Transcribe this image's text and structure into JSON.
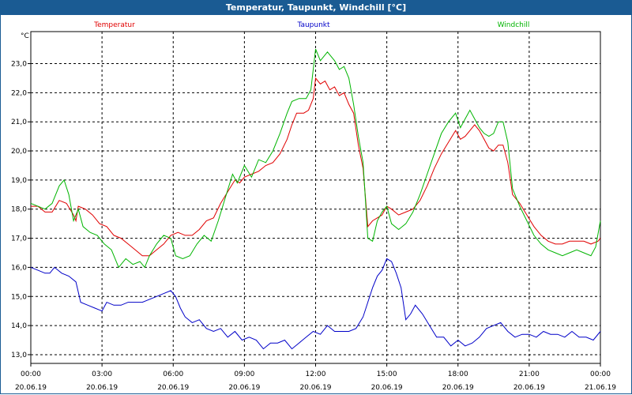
{
  "window": {
    "title": "Temperatur, Taupunkt, Windchill [°C]"
  },
  "chart_data": {
    "type": "line",
    "title": "Temperatur, Taupunkt, Windchill [°C]",
    "ylabel": "°C",
    "ylim": [
      12.7,
      24.1
    ],
    "xlim": [
      0,
      24
    ],
    "yticks": [
      {
        "v": 13,
        "label": "13,0"
      },
      {
        "v": 14,
        "label": "14,0"
      },
      {
        "v": 15,
        "label": "15,0"
      },
      {
        "v": 16,
        "label": "16,0"
      },
      {
        "v": 17,
        "label": "17,0"
      },
      {
        "v": 18,
        "label": "18,0"
      },
      {
        "v": 19,
        "label": "19,0"
      },
      {
        "v": 20,
        "label": "20,0"
      },
      {
        "v": 21,
        "label": "21,0"
      },
      {
        "v": 22,
        "label": "22,0"
      },
      {
        "v": 23,
        "label": "23,0"
      }
    ],
    "xticks": [
      {
        "v": 0,
        "time": "00:00",
        "date": "20.06.19"
      },
      {
        "v": 3,
        "time": "03:00",
        "date": "20.06.19"
      },
      {
        "v": 6,
        "time": "06:00",
        "date": "20.06.19"
      },
      {
        "v": 9,
        "time": "09:00",
        "date": "20.06.19"
      },
      {
        "v": 12,
        "time": "12:00",
        "date": "20.06.19"
      },
      {
        "v": 15,
        "time": "15:00",
        "date": "20.06.19"
      },
      {
        "v": 18,
        "time": "18:00",
        "date": "20.06.19"
      },
      {
        "v": 21,
        "time": "21:00",
        "date": "20.06.19"
      },
      {
        "v": 24,
        "time": "00:00",
        "date": "21.06.19"
      }
    ],
    "grid": true,
    "legend": "top",
    "series": [
      {
        "name": "Temperatur",
        "color": "#e00000",
        "points": [
          [
            0,
            18.1
          ],
          [
            0.3,
            18.1
          ],
          [
            0.6,
            17.9
          ],
          [
            0.9,
            17.9
          ],
          [
            1.2,
            18.3
          ],
          [
            1.5,
            18.2
          ],
          [
            1.8,
            17.8
          ],
          [
            1.9,
            17.6
          ],
          [
            2.0,
            18.1
          ],
          [
            2.3,
            18.0
          ],
          [
            2.6,
            17.8
          ],
          [
            2.9,
            17.5
          ],
          [
            3.2,
            17.4
          ],
          [
            3.5,
            17.1
          ],
          [
            3.8,
            17.0
          ],
          [
            4.1,
            16.8
          ],
          [
            4.4,
            16.6
          ],
          [
            4.7,
            16.4
          ],
          [
            5.0,
            16.4
          ],
          [
            5.3,
            16.6
          ],
          [
            5.6,
            16.8
          ],
          [
            5.9,
            17.1
          ],
          [
            6.2,
            17.2
          ],
          [
            6.5,
            17.1
          ],
          [
            6.8,
            17.1
          ],
          [
            7.1,
            17.3
          ],
          [
            7.4,
            17.6
          ],
          [
            7.7,
            17.7
          ],
          [
            8.0,
            18.2
          ],
          [
            8.3,
            18.6
          ],
          [
            8.6,
            19.0
          ],
          [
            8.8,
            18.9
          ],
          [
            9.0,
            19.1
          ],
          [
            9.3,
            19.2
          ],
          [
            9.6,
            19.3
          ],
          [
            9.9,
            19.5
          ],
          [
            10.2,
            19.6
          ],
          [
            10.5,
            19.9
          ],
          [
            10.8,
            20.4
          ],
          [
            11.0,
            20.9
          ],
          [
            11.2,
            21.3
          ],
          [
            11.5,
            21.3
          ],
          [
            11.7,
            21.4
          ],
          [
            11.9,
            21.8
          ],
          [
            12.0,
            22.5
          ],
          [
            12.2,
            22.3
          ],
          [
            12.4,
            22.4
          ],
          [
            12.6,
            22.1
          ],
          [
            12.8,
            22.2
          ],
          [
            13.0,
            21.9
          ],
          [
            13.2,
            22.0
          ],
          [
            13.4,
            21.6
          ],
          [
            13.6,
            21.3
          ],
          [
            13.8,
            20.2
          ],
          [
            14.0,
            19.4
          ],
          [
            14.2,
            17.4
          ],
          [
            14.4,
            17.6
          ],
          [
            14.6,
            17.7
          ],
          [
            14.8,
            17.8
          ],
          [
            15.0,
            18.1
          ],
          [
            15.2,
            18.0
          ],
          [
            15.5,
            17.8
          ],
          [
            15.8,
            17.9
          ],
          [
            16.1,
            18.0
          ],
          [
            16.4,
            18.3
          ],
          [
            16.7,
            18.8
          ],
          [
            17.0,
            19.4
          ],
          [
            17.3,
            19.9
          ],
          [
            17.6,
            20.3
          ],
          [
            17.9,
            20.7
          ],
          [
            18.1,
            20.4
          ],
          [
            18.3,
            20.5
          ],
          [
            18.5,
            20.7
          ],
          [
            18.7,
            20.9
          ],
          [
            18.9,
            20.7
          ],
          [
            19.1,
            20.4
          ],
          [
            19.3,
            20.1
          ],
          [
            19.5,
            20.0
          ],
          [
            19.7,
            20.2
          ],
          [
            19.9,
            20.2
          ],
          [
            20.1,
            19.6
          ],
          [
            20.3,
            18.5
          ],
          [
            20.6,
            18.2
          ],
          [
            20.9,
            17.8
          ],
          [
            21.2,
            17.4
          ],
          [
            21.5,
            17.1
          ],
          [
            21.8,
            16.9
          ],
          [
            22.1,
            16.8
          ],
          [
            22.4,
            16.8
          ],
          [
            22.7,
            16.9
          ],
          [
            23.0,
            16.9
          ],
          [
            23.3,
            16.9
          ],
          [
            23.6,
            16.8
          ],
          [
            23.9,
            16.9
          ],
          [
            24,
            17.0
          ]
        ]
      },
      {
        "name": "Taupunkt",
        "color": "#0000c8",
        "points": [
          [
            0,
            16.0
          ],
          [
            0.3,
            15.9
          ],
          [
            0.6,
            15.8
          ],
          [
            0.8,
            15.8
          ],
          [
            1.0,
            16.0
          ],
          [
            1.3,
            15.8
          ],
          [
            1.6,
            15.7
          ],
          [
            1.9,
            15.5
          ],
          [
            2.1,
            14.8
          ],
          [
            2.4,
            14.7
          ],
          [
            2.7,
            14.6
          ],
          [
            3.0,
            14.5
          ],
          [
            3.2,
            14.8
          ],
          [
            3.5,
            14.7
          ],
          [
            3.8,
            14.7
          ],
          [
            4.1,
            14.8
          ],
          [
            4.4,
            14.8
          ],
          [
            4.7,
            14.8
          ],
          [
            5.0,
            14.9
          ],
          [
            5.3,
            15.0
          ],
          [
            5.6,
            15.1
          ],
          [
            5.9,
            15.2
          ],
          [
            6.1,
            15.0
          ],
          [
            6.3,
            14.6
          ],
          [
            6.5,
            14.3
          ],
          [
            6.8,
            14.1
          ],
          [
            7.1,
            14.2
          ],
          [
            7.4,
            13.9
          ],
          [
            7.7,
            13.8
          ],
          [
            8.0,
            13.9
          ],
          [
            8.3,
            13.6
          ],
          [
            8.6,
            13.8
          ],
          [
            8.9,
            13.5
          ],
          [
            9.2,
            13.6
          ],
          [
            9.5,
            13.5
          ],
          [
            9.8,
            13.2
          ],
          [
            10.1,
            13.4
          ],
          [
            10.4,
            13.4
          ],
          [
            10.7,
            13.5
          ],
          [
            11.0,
            13.2
          ],
          [
            11.3,
            13.4
          ],
          [
            11.6,
            13.6
          ],
          [
            11.9,
            13.8
          ],
          [
            12.2,
            13.7
          ],
          [
            12.5,
            14.0
          ],
          [
            12.8,
            13.8
          ],
          [
            13.1,
            13.8
          ],
          [
            13.4,
            13.8
          ],
          [
            13.7,
            13.9
          ],
          [
            14.0,
            14.3
          ],
          [
            14.2,
            14.8
          ],
          [
            14.4,
            15.3
          ],
          [
            14.6,
            15.7
          ],
          [
            14.8,
            15.9
          ],
          [
            15.0,
            16.3
          ],
          [
            15.2,
            16.2
          ],
          [
            15.4,
            15.8
          ],
          [
            15.6,
            15.3
          ],
          [
            15.8,
            14.2
          ],
          [
            16.0,
            14.4
          ],
          [
            16.2,
            14.7
          ],
          [
            16.5,
            14.4
          ],
          [
            16.8,
            14.0
          ],
          [
            17.1,
            13.6
          ],
          [
            17.4,
            13.6
          ],
          [
            17.7,
            13.3
          ],
          [
            18.0,
            13.5
          ],
          [
            18.3,
            13.3
          ],
          [
            18.6,
            13.4
          ],
          [
            18.9,
            13.6
          ],
          [
            19.2,
            13.9
          ],
          [
            19.5,
            14.0
          ],
          [
            19.8,
            14.1
          ],
          [
            20.1,
            13.8
          ],
          [
            20.4,
            13.6
          ],
          [
            20.7,
            13.7
          ],
          [
            21.0,
            13.7
          ],
          [
            21.3,
            13.6
          ],
          [
            21.6,
            13.8
          ],
          [
            21.9,
            13.7
          ],
          [
            22.2,
            13.7
          ],
          [
            22.5,
            13.6
          ],
          [
            22.8,
            13.8
          ],
          [
            23.1,
            13.6
          ],
          [
            23.4,
            13.6
          ],
          [
            23.7,
            13.5
          ],
          [
            24,
            13.8
          ]
        ]
      },
      {
        "name": "Windchill",
        "color": "#00b400",
        "points": [
          [
            0,
            18.2
          ],
          [
            0.3,
            18.1
          ],
          [
            0.6,
            18.0
          ],
          [
            0.9,
            18.2
          ],
          [
            1.2,
            18.8
          ],
          [
            1.4,
            19.0
          ],
          [
            1.6,
            18.5
          ],
          [
            1.8,
            17.6
          ],
          [
            2.0,
            18.0
          ],
          [
            2.2,
            17.4
          ],
          [
            2.5,
            17.2
          ],
          [
            2.8,
            17.1
          ],
          [
            3.1,
            16.8
          ],
          [
            3.4,
            16.6
          ],
          [
            3.7,
            16.0
          ],
          [
            4.0,
            16.3
          ],
          [
            4.3,
            16.1
          ],
          [
            4.6,
            16.2
          ],
          [
            4.8,
            16.0
          ],
          [
            5.0,
            16.4
          ],
          [
            5.3,
            16.8
          ],
          [
            5.6,
            17.1
          ],
          [
            5.9,
            17.0
          ],
          [
            6.1,
            16.4
          ],
          [
            6.4,
            16.3
          ],
          [
            6.7,
            16.4
          ],
          [
            7.0,
            16.8
          ],
          [
            7.3,
            17.1
          ],
          [
            7.6,
            16.9
          ],
          [
            7.9,
            17.6
          ],
          [
            8.2,
            18.4
          ],
          [
            8.5,
            19.2
          ],
          [
            8.7,
            18.9
          ],
          [
            9.0,
            19.5
          ],
          [
            9.3,
            19.1
          ],
          [
            9.6,
            19.7
          ],
          [
            9.9,
            19.6
          ],
          [
            10.2,
            20.0
          ],
          [
            10.5,
            20.6
          ],
          [
            10.8,
            21.3
          ],
          [
            11.0,
            21.7
          ],
          [
            11.3,
            21.8
          ],
          [
            11.6,
            21.8
          ],
          [
            11.8,
            22.1
          ],
          [
            12.0,
            23.5
          ],
          [
            12.2,
            23.1
          ],
          [
            12.5,
            23.4
          ],
          [
            12.8,
            23.1
          ],
          [
            13.0,
            22.8
          ],
          [
            13.2,
            22.9
          ],
          [
            13.4,
            22.5
          ],
          [
            13.6,
            21.6
          ],
          [
            13.8,
            20.5
          ],
          [
            14.0,
            19.6
          ],
          [
            14.2,
            17.0
          ],
          [
            14.4,
            16.9
          ],
          [
            14.6,
            17.6
          ],
          [
            14.8,
            17.9
          ],
          [
            15.0,
            18.1
          ],
          [
            15.2,
            17.5
          ],
          [
            15.5,
            17.3
          ],
          [
            15.8,
            17.5
          ],
          [
            16.1,
            17.9
          ],
          [
            16.4,
            18.5
          ],
          [
            16.7,
            19.2
          ],
          [
            17.0,
            19.9
          ],
          [
            17.3,
            20.6
          ],
          [
            17.6,
            21.0
          ],
          [
            17.9,
            21.3
          ],
          [
            18.1,
            20.8
          ],
          [
            18.3,
            21.1
          ],
          [
            18.5,
            21.4
          ],
          [
            18.7,
            21.1
          ],
          [
            18.9,
            20.8
          ],
          [
            19.1,
            20.6
          ],
          [
            19.3,
            20.5
          ],
          [
            19.5,
            20.6
          ],
          [
            19.7,
            21.0
          ],
          [
            19.9,
            21.0
          ],
          [
            20.1,
            20.3
          ],
          [
            20.3,
            18.7
          ],
          [
            20.6,
            18.1
          ],
          [
            20.9,
            17.6
          ],
          [
            21.2,
            17.1
          ],
          [
            21.5,
            16.8
          ],
          [
            21.8,
            16.6
          ],
          [
            22.1,
            16.5
          ],
          [
            22.4,
            16.4
          ],
          [
            22.7,
            16.5
          ],
          [
            23.0,
            16.6
          ],
          [
            23.3,
            16.5
          ],
          [
            23.6,
            16.4
          ],
          [
            23.8,
            16.7
          ],
          [
            24,
            17.6
          ]
        ]
      }
    ]
  }
}
